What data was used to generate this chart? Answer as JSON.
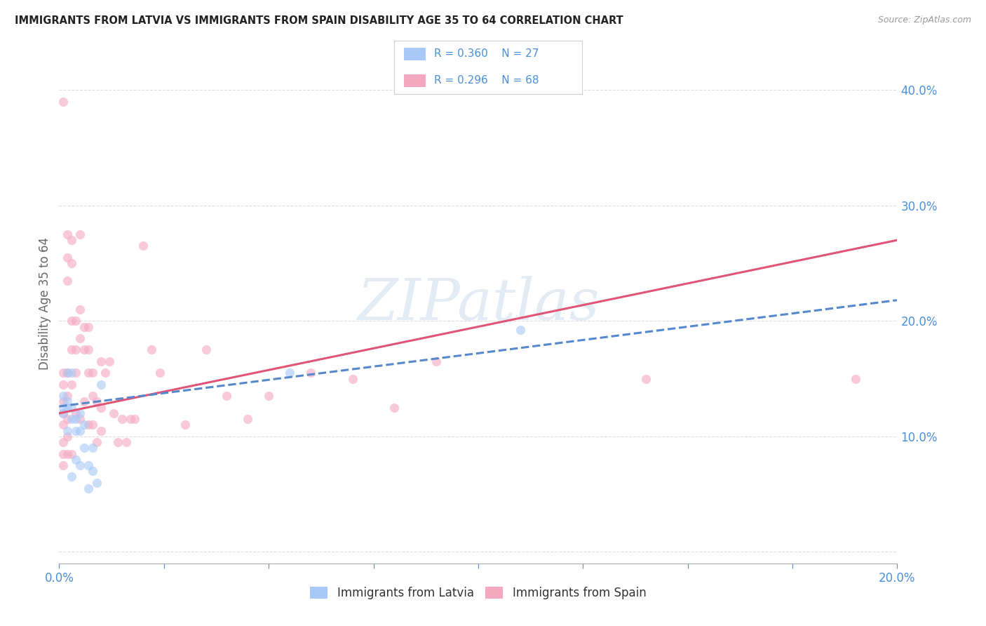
{
  "title": "IMMIGRANTS FROM LATVIA VS IMMIGRANTS FROM SPAIN DISABILITY AGE 35 TO 64 CORRELATION CHART",
  "source": "Source: ZipAtlas.com",
  "ylabel": "Disability Age 35 to 64",
  "xlim": [
    0.0,
    0.2
  ],
  "ylim": [
    -0.01,
    0.44
  ],
  "legend_labels": [
    "Immigrants from Latvia",
    "Immigrants from Spain"
  ],
  "blue_color": "#a8c8f8",
  "pink_color": "#f4a8c0",
  "blue_line_color": "#5588cc",
  "pink_line_color": "#e05575",
  "title_color": "#222222",
  "axis_label_color": "#4a90d9",
  "ylabel_color": "#666666",
  "background_color": "#ffffff",
  "grid_color": "#dddddd",
  "watermark": "ZIPatlas",
  "watermark_color": "#ccddee",
  "latvia_x": [
    0.001,
    0.001,
    0.001,
    0.002,
    0.002,
    0.002,
    0.002,
    0.003,
    0.003,
    0.003,
    0.004,
    0.004,
    0.004,
    0.005,
    0.005,
    0.005,
    0.006,
    0.006,
    0.007,
    0.007,
    0.008,
    0.008,
    0.009,
    0.01,
    0.055,
    0.11,
    0.003
  ],
  "latvia_y": [
    0.135,
    0.125,
    0.12,
    0.155,
    0.13,
    0.125,
    0.105,
    0.155,
    0.125,
    0.115,
    0.115,
    0.105,
    0.08,
    0.12,
    0.105,
    0.075,
    0.11,
    0.09,
    0.075,
    0.055,
    0.09,
    0.07,
    0.06,
    0.145,
    0.155,
    0.192,
    0.065
  ],
  "spain_x": [
    0.001,
    0.001,
    0.001,
    0.001,
    0.001,
    0.001,
    0.001,
    0.001,
    0.001,
    0.002,
    0.002,
    0.002,
    0.002,
    0.002,
    0.002,
    0.002,
    0.002,
    0.003,
    0.003,
    0.003,
    0.003,
    0.003,
    0.003,
    0.004,
    0.004,
    0.004,
    0.004,
    0.005,
    0.005,
    0.005,
    0.005,
    0.006,
    0.006,
    0.006,
    0.007,
    0.007,
    0.007,
    0.007,
    0.008,
    0.008,
    0.008,
    0.009,
    0.009,
    0.01,
    0.01,
    0.01,
    0.011,
    0.012,
    0.013,
    0.014,
    0.015,
    0.016,
    0.017,
    0.018,
    0.02,
    0.022,
    0.024,
    0.03,
    0.035,
    0.04,
    0.045,
    0.05,
    0.06,
    0.07,
    0.08,
    0.09,
    0.14,
    0.19
  ],
  "spain_y": [
    0.39,
    0.155,
    0.145,
    0.13,
    0.12,
    0.11,
    0.095,
    0.085,
    0.075,
    0.275,
    0.255,
    0.235,
    0.155,
    0.135,
    0.115,
    0.1,
    0.085,
    0.27,
    0.25,
    0.2,
    0.175,
    0.145,
    0.085,
    0.2,
    0.175,
    0.155,
    0.12,
    0.275,
    0.21,
    0.185,
    0.115,
    0.195,
    0.175,
    0.13,
    0.195,
    0.175,
    0.155,
    0.11,
    0.155,
    0.135,
    0.11,
    0.13,
    0.095,
    0.165,
    0.125,
    0.105,
    0.155,
    0.165,
    0.12,
    0.095,
    0.115,
    0.095,
    0.115,
    0.115,
    0.265,
    0.175,
    0.155,
    0.11,
    0.175,
    0.135,
    0.115,
    0.135,
    0.155,
    0.15,
    0.125,
    0.165,
    0.15,
    0.15
  ],
  "dot_size": 90,
  "dot_alpha": 0.6,
  "blue_trend_x": [
    0.0,
    0.2
  ],
  "blue_trend_y": [
    0.126,
    0.218
  ],
  "pink_trend_x": [
    0.0,
    0.2
  ],
  "pink_trend_y": [
    0.12,
    0.27
  ]
}
